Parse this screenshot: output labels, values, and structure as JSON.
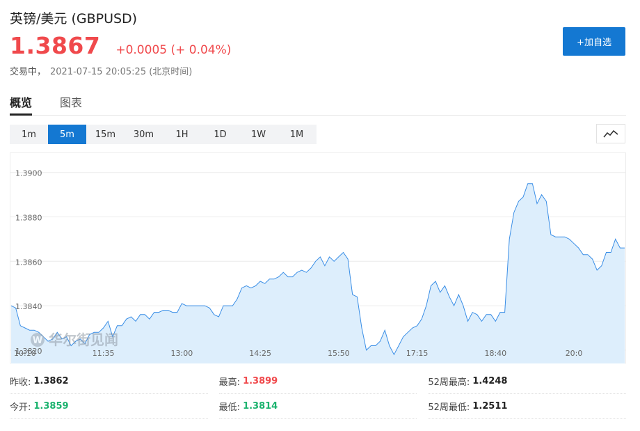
{
  "header": {
    "title": "英镑/美元  (GBPUSD)",
    "price": "1.3867",
    "change": "+0.0005 (+ 0.04%)",
    "status": "交易中，",
    "timestamp": "2021-07-15 20:05:25 (北京时间)",
    "add_button": "+加自选"
  },
  "tabs": [
    {
      "label": "概览",
      "active": true
    },
    {
      "label": "图表",
      "active": false
    }
  ],
  "periods": [
    {
      "label": "1m",
      "active": false
    },
    {
      "label": "5m",
      "active": true
    },
    {
      "label": "15m",
      "active": false
    },
    {
      "label": "30m",
      "active": false
    },
    {
      "label": "1H",
      "active": false
    },
    {
      "label": "1D",
      "active": false
    },
    {
      "label": "1W",
      "active": false
    },
    {
      "label": "1M",
      "active": false
    }
  ],
  "chart_icon": "line-chart-icon",
  "watermark": "华尔街见闻",
  "stats": [
    [
      {
        "label": "昨收:",
        "value": "1.3862",
        "tone": "neutral"
      },
      {
        "label": "最高:",
        "value": "1.3899",
        "tone": "up"
      },
      {
        "label": "52周最高:",
        "value": "1.4248",
        "tone": "neutral"
      }
    ],
    [
      {
        "label": "今开:",
        "value": "1.3859",
        "tone": "down"
      },
      {
        "label": "最低:",
        "value": "1.3814",
        "tone": "down"
      },
      {
        "label": "52周最低:",
        "value": "1.2511",
        "tone": "neutral"
      }
    ]
  ],
  "colors": {
    "up": "#f0494c",
    "down": "#1bb26e",
    "accent": "#1478d2",
    "line": "#3a8ee6",
    "fill": "#ddeefc"
  },
  "chart_data": {
    "type": "area",
    "ylim": [
      1.3814,
      1.3909
    ],
    "yticks": [
      "1.3900",
      "1.3880",
      "1.3860",
      "1.3840",
      "1.3820"
    ],
    "yticks_values": [
      1.39,
      1.388,
      1.386,
      1.384,
      1.382
    ],
    "xticks": [
      {
        "label": "10:10",
        "index": 3
      },
      {
        "label": "11:35",
        "index": 20
      },
      {
        "label": "13:00",
        "index": 37
      },
      {
        "label": "14:25",
        "index": 54
      },
      {
        "label": "15:50",
        "index": 71
      },
      {
        "label": "17:15",
        "index": 88
      },
      {
        "label": "18:40",
        "index": 105
      },
      {
        "label": "20:0",
        "index": 122
      }
    ],
    "values": [
      1.384,
      1.3839,
      1.3831,
      1.383,
      1.3829,
      1.3829,
      1.3828,
      1.3826,
      1.3824,
      1.3825,
      1.3828,
      1.3825,
      1.3826,
      1.3822,
      1.3824,
      1.3825,
      1.3823,
      1.3827,
      1.3828,
      1.3828,
      1.383,
      1.3833,
      1.3826,
      1.3831,
      1.3831,
      1.3834,
      1.3835,
      1.3833,
      1.3836,
      1.3836,
      1.3834,
      1.3837,
      1.3837,
      1.3838,
      1.3838,
      1.3837,
      1.3837,
      1.3841,
      1.384,
      1.384,
      1.384,
      1.384,
      1.384,
      1.3839,
      1.3836,
      1.3835,
      1.384,
      1.384,
      1.384,
      1.3843,
      1.3848,
      1.3849,
      1.3848,
      1.3849,
      1.3851,
      1.385,
      1.3852,
      1.3852,
      1.3853,
      1.3855,
      1.3853,
      1.3853,
      1.3855,
      1.3856,
      1.3855,
      1.3857,
      1.386,
      1.3862,
      1.3858,
      1.3862,
      1.386,
      1.3862,
      1.3864,
      1.3861,
      1.3845,
      1.3844,
      1.383,
      1.382,
      1.3822,
      1.3822,
      1.3824,
      1.3829,
      1.3822,
      1.3818,
      1.3822,
      1.3826,
      1.3828,
      1.383,
      1.3831,
      1.3834,
      1.384,
      1.3849,
      1.3851,
      1.3846,
      1.3849,
      1.3844,
      1.384,
      1.3845,
      1.384,
      1.3833,
      1.3837,
      1.3836,
      1.3833,
      1.3836,
      1.3836,
      1.3833,
      1.3837,
      1.3837,
      1.387,
      1.3882,
      1.3887,
      1.3889,
      1.3895,
      1.3895,
      1.3886,
      1.389,
      1.3887,
      1.3872,
      1.3871,
      1.3871,
      1.3871,
      1.387,
      1.3868,
      1.3866,
      1.3863,
      1.3863,
      1.3861,
      1.3856,
      1.3858,
      1.3864,
      1.3864,
      1.387,
      1.3866,
      1.3866
    ]
  }
}
